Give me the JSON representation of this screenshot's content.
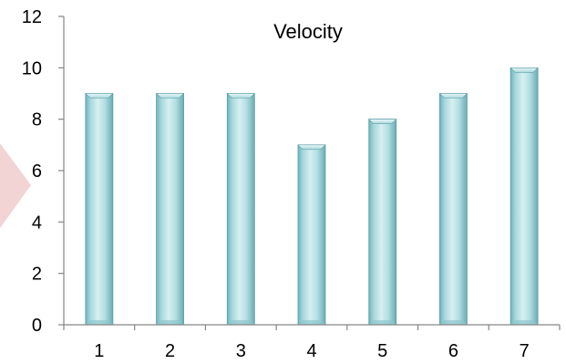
{
  "chart_data": {
    "type": "bar",
    "title": "Velocity",
    "categories": [
      "1",
      "2",
      "3",
      "4",
      "5",
      "6",
      "7"
    ],
    "values": [
      9,
      9,
      9,
      7,
      8,
      9,
      10
    ],
    "ylim": [
      0,
      12
    ],
    "yticks": [
      0,
      2,
      4,
      6,
      8,
      10,
      12
    ],
    "xlabel": "",
    "ylabel": "",
    "grid": false,
    "legend": "none",
    "bar_color": "#9fd3d8",
    "bar_edge_color": "#5a9ea6",
    "axis_color": "#868686",
    "accent_shape_color": "#f2d4d4"
  }
}
